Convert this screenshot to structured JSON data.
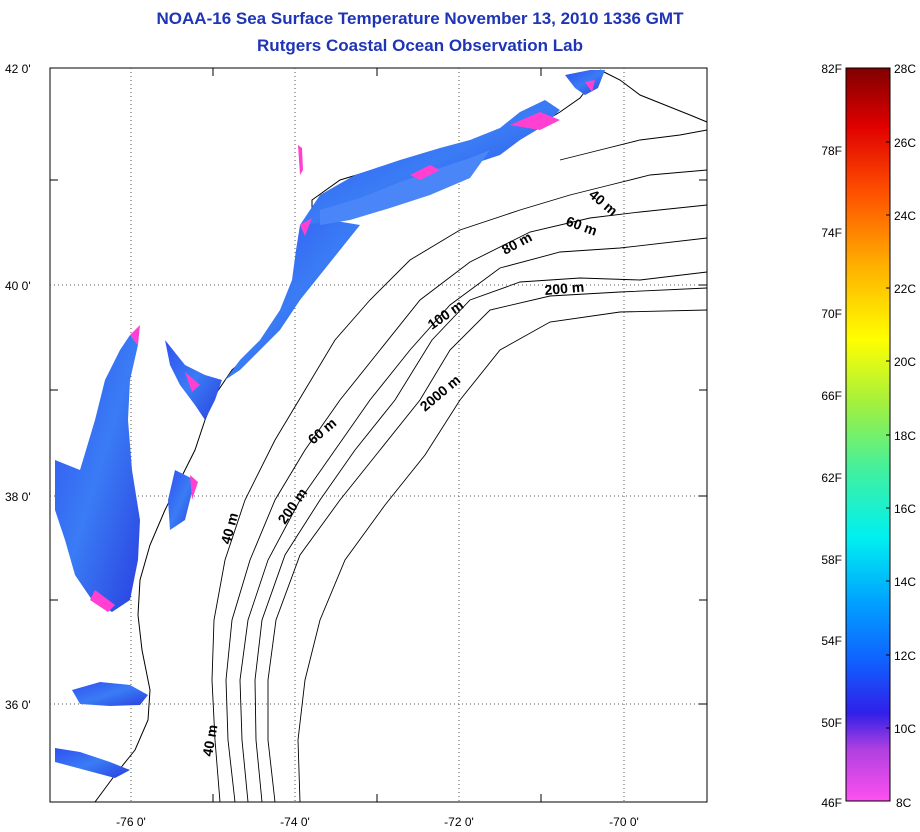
{
  "title_line1": "NOAA-16 Sea Surface Temperature November 13, 2010 1336 GMT",
  "title_line2": "Rutgers Coastal Ocean Observation Lab",
  "map": {
    "lat_labels": [
      "42 0'",
      "40 0'",
      "38 0'",
      "36 0'"
    ],
    "lon_labels": [
      "-76 0'",
      "-74 0'",
      "-72 0'",
      "-70 0'"
    ],
    "depth_labels": [
      "40 m",
      "60 m",
      "80 m",
      "200 m",
      "100 m",
      "2000 m",
      "60 m",
      "200 m",
      "40 m",
      "40 m"
    ]
  },
  "colorbar": {
    "fahrenheit": [
      "82F",
      "78F",
      "74F",
      "70F",
      "66F",
      "62F",
      "58F",
      "54F",
      "50F",
      "46F"
    ],
    "celsius": [
      "28C",
      "26C",
      "24C",
      "22C",
      "20C",
      "18C",
      "16C",
      "14C",
      "12C",
      "10C",
      "8C"
    ]
  },
  "colors": {
    "title": "#1f35b5",
    "water_warm": "#3a5cf0",
    "water_cold": "#ff3cc8"
  }
}
